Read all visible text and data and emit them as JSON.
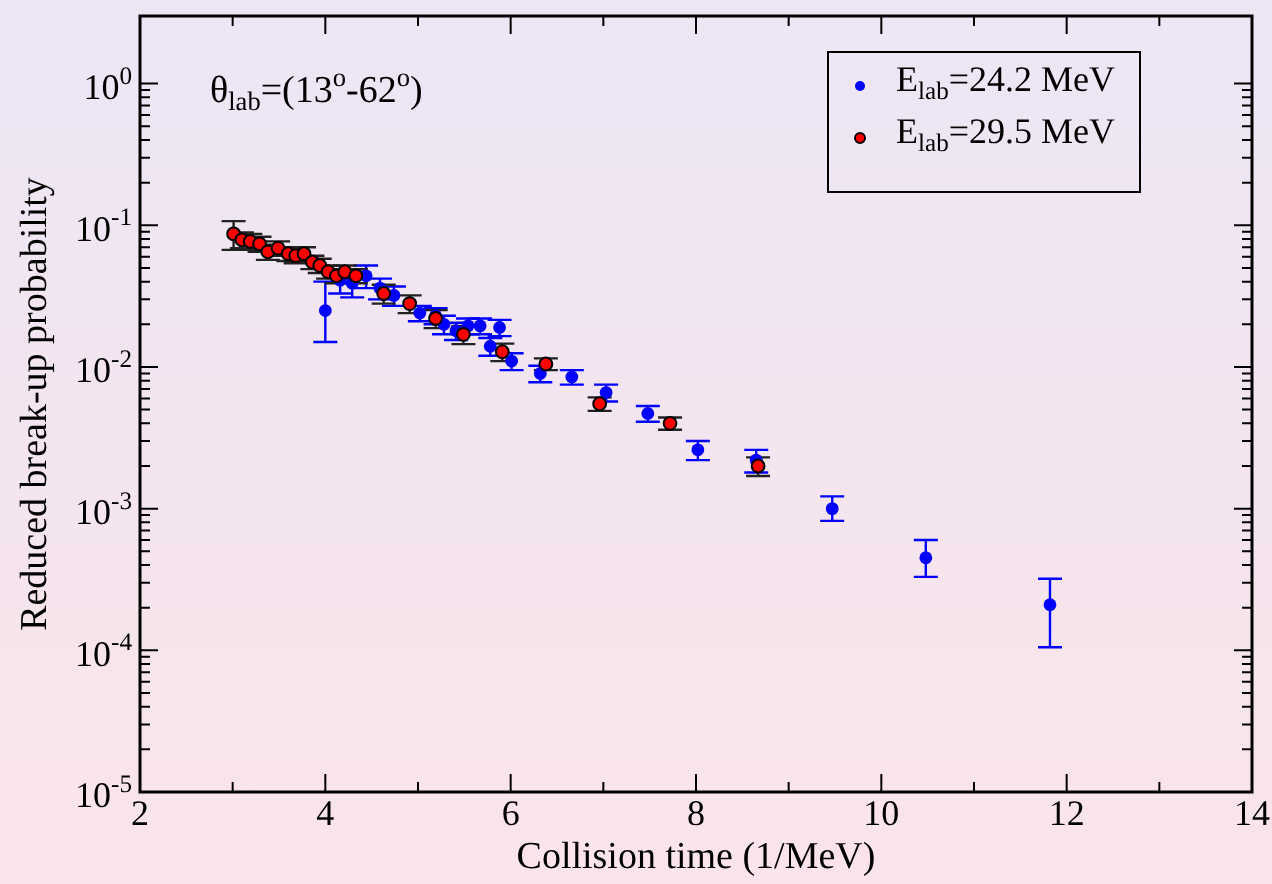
{
  "chart_data": {
    "type": "scatter",
    "xlabel": "Collision time (1/MeV)",
    "ylabel": "Reduced break-up probability",
    "annotations": [
      "θ$_{lab}$=(13$^{o}$-62$^{o}$)"
    ],
    "log": "y",
    "marker": "circle",
    "legend": "top right",
    "grid": false,
    "xlim": [
      2,
      14
    ],
    "xticks": [
      2,
      {
        "value": 3,
        "label": null
      },
      4,
      {
        "value": 5,
        "label": null
      },
      6,
      {
        "value": 7,
        "label": null
      },
      8,
      {
        "value": 9,
        "label": null
      },
      10,
      {
        "value": 11,
        "label": null
      },
      12,
      {
        "value": 13,
        "label": null
      },
      14
    ],
    "ylim": [
      1e-05,
      3
    ],
    "yticks": [
      {
        "value": 1e-05,
        "label": "10$^{-5}$"
      },
      {
        "value": 0.0001,
        "label": "10$^{-4}$"
      },
      {
        "value": 0.001,
        "label": "10$^{-3}$"
      },
      {
        "value": 0.01,
        "label": "10$^{-2}$"
      },
      {
        "value": 0.1,
        "label": "10$^{-1}$"
      },
      {
        "value": 1,
        "label": "10$^{0}$"
      }
    ],
    "series": [
      {
        "name": "E$_{lab}$=24.2 MeV",
        "color": "#0000ff",
        "x": [
          4.0,
          4.16,
          4.29,
          4.44,
          4.59,
          4.74,
          4.87,
          5.02,
          5.19,
          5.28,
          5.41,
          5.54,
          5.67,
          5.78,
          5.88,
          6.01,
          6.32,
          6.66,
          7.03,
          7.48,
          8.02,
          8.65,
          9.47,
          10.48,
          11.82
        ],
        "values": [
          0.025,
          0.041,
          0.039,
          0.044,
          0.036,
          0.032,
          null,
          0.024,
          0.023,
          0.02,
          0.018,
          0.0195,
          0.0195,
          0.014,
          0.019,
          0.011,
          0.009,
          0.0085,
          0.0066,
          0.0047,
          0.0026,
          0.0022,
          0.001,
          0.00045,
          0.00021
        ],
        "errors": [
          [
            0.015,
            0.04
          ],
          0.008,
          0.008,
          0.008,
          0.006,
          0.005,
          null,
          0.003,
          0.003,
          0.003,
          0.0025,
          0.0025,
          0.0025,
          0.002,
          0.0025,
          0.0015,
          0.0012,
          0.001,
          0.0009,
          0.0006,
          0.0004,
          0.0004,
          [
            0.00082,
            0.00122
          ],
          [
            0.00033,
            0.0006
          ],
          [
            0.000105,
            0.00032
          ]
        ]
      },
      {
        "name": "E$_{lab}$=29.5 MeV",
        "color": "#ff0000",
        "x": [
          3.01,
          3.1,
          3.19,
          3.29,
          3.38,
          3.49,
          3.6,
          3.68,
          3.77,
          3.86,
          3.94,
          4.03,
          4.12,
          4.21,
          4.33,
          4.63,
          4.91,
          5.19,
          5.49,
          5.91,
          6.38,
          6.96,
          7.72,
          8.67
        ],
        "values": [
          0.087,
          0.079,
          0.077,
          0.074,
          0.065,
          0.069,
          0.063,
          0.061,
          0.063,
          0.055,
          0.052,
          0.047,
          0.044,
          0.047,
          0.044,
          0.033,
          0.028,
          0.022,
          0.017,
          0.0128,
          0.0105,
          0.0055,
          0.004,
          0.002
        ],
        "errors": [
          0.02,
          0.01,
          0.01,
          0.009,
          0.008,
          0.008,
          0.007,
          0.007,
          0.007,
          0.006,
          0.006,
          0.005,
          0.005,
          0.005,
          0.005,
          0.005,
          0.004,
          0.0032,
          0.0025,
          0.0018,
          0.001,
          0.0006,
          0.0004,
          0.0003
        ]
      }
    ]
  }
}
